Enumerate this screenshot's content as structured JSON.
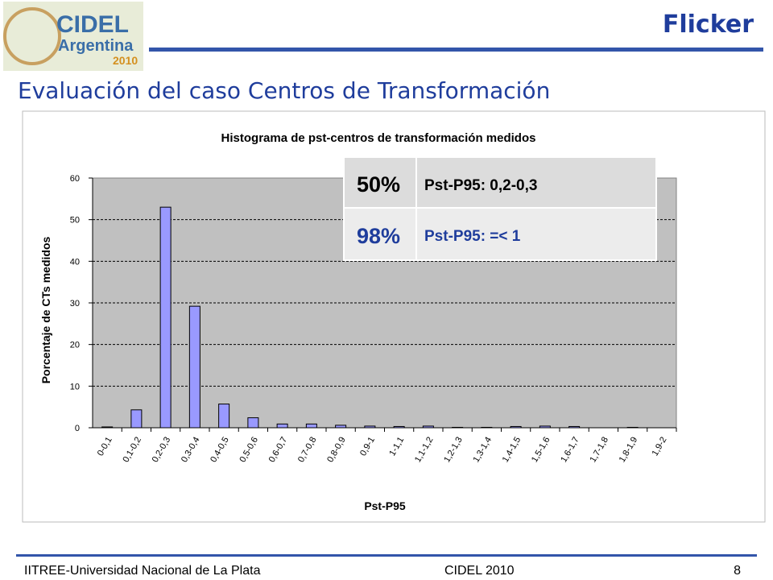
{
  "slide": {
    "logo": {
      "line1": "CIDEL",
      "line2": "Argentina",
      "line3": "2010"
    },
    "title": "Flicker",
    "subtitle": "Evaluación del caso Centros de Transformación",
    "footer": {
      "left": "IITREE-Universidad Nacional de La Plata",
      "center": "CIDEL 2010",
      "page": "8"
    },
    "summary_table": {
      "rows": [
        [
          "50%",
          "Pst-P95: 0,2-0,3"
        ],
        [
          "98%",
          "Pst-P95: =< 1"
        ]
      ]
    }
  },
  "chart_data": {
    "type": "bar",
    "title": "Histograma de pst-centros de transformación medidos",
    "x_label": "Pst-P95",
    "y_label": "Porcentaje de CTs medidos",
    "categories": [
      "0-0,1",
      "0,1-0,2",
      "0,2-0,3",
      "0,3-0,4",
      "0,4-0,5",
      "0,5-0,6",
      "0,6-0,7",
      "0,7-0,8",
      "0,8-0,9",
      "0,9-1",
      "1-1,1",
      "1,1-1,2",
      "1,2-1,3",
      "1,3-1,4",
      "1,4-1,5",
      "1,5-1,6",
      "1,6-1,7",
      "1,7-1,8",
      "1,8-1,9",
      "1,9-2"
    ],
    "values": [
      0.2,
      4.3,
      53,
      29.2,
      5.7,
      2.4,
      0.9,
      0.9,
      0.6,
      0.4,
      0.3,
      0.4,
      0.1,
      0.1,
      0.3,
      0.4,
      0.3,
      0,
      0.1,
      0
    ],
    "color": "#9999ff",
    "ylim": [
      0,
      60
    ],
    "yticks": [
      0,
      10,
      20,
      30,
      40,
      50,
      60
    ],
    "grid": true
  }
}
